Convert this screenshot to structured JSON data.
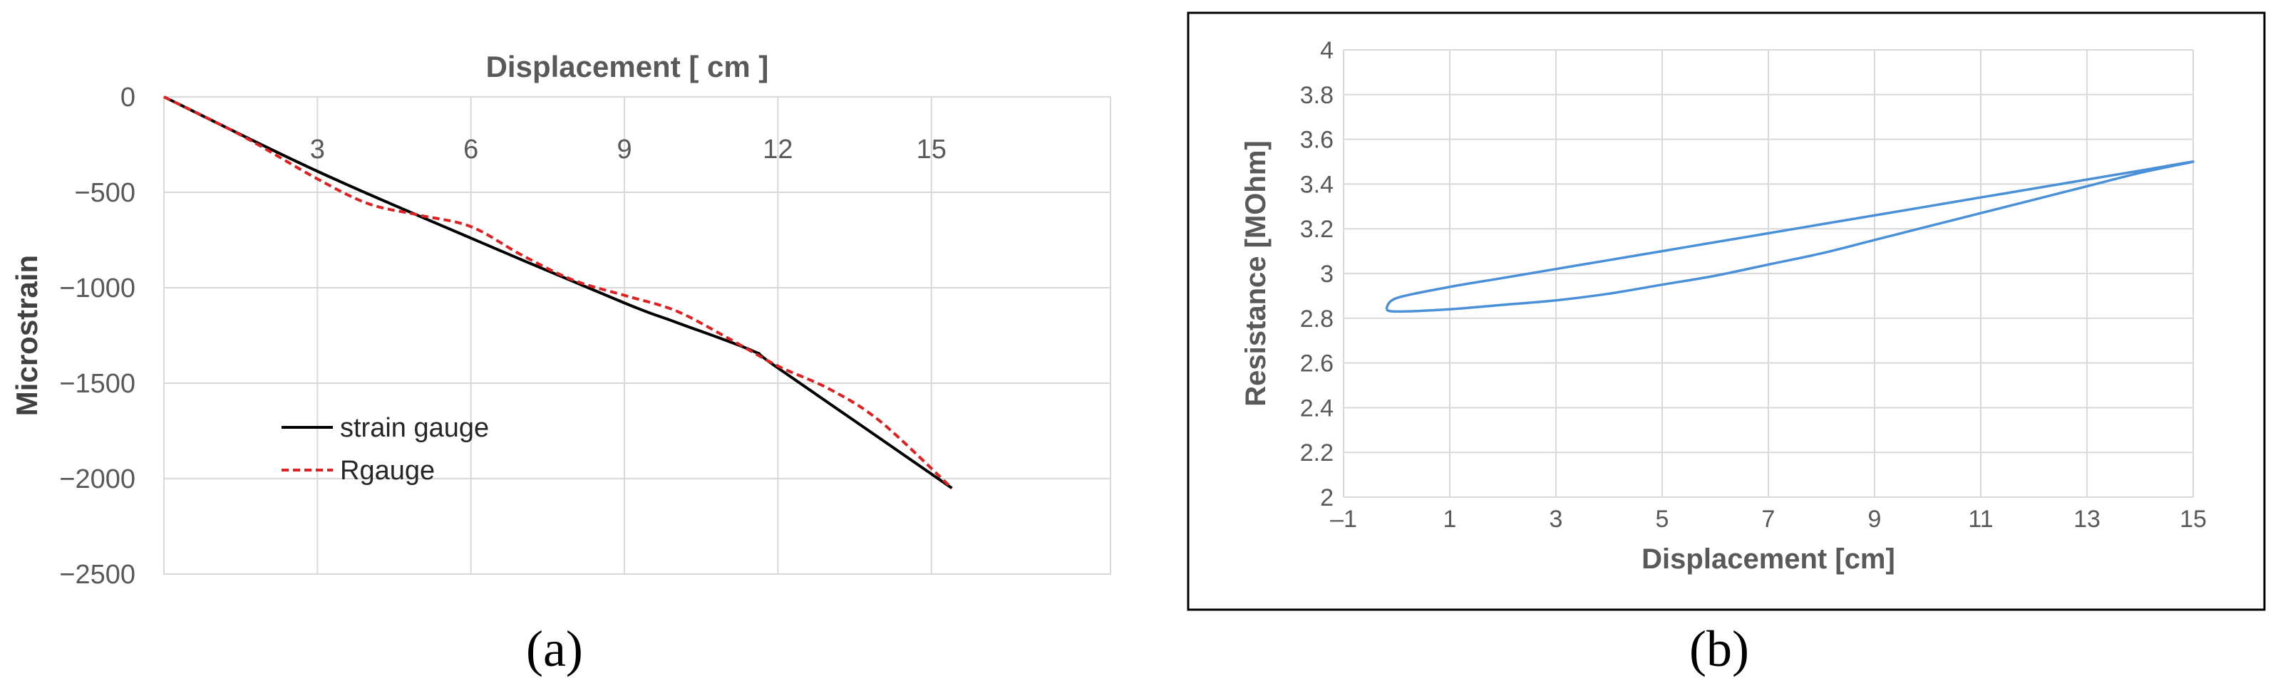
{
  "chart_data": [
    {
      "panel": "(a)",
      "type": "line",
      "xlabel": "Displacement [ cm ]",
      "ylabel": "Microstrain",
      "xlim": [
        0,
        18.5
      ],
      "ylim": [
        -2500,
        0
      ],
      "xticks": [
        3,
        6,
        9,
        12,
        15
      ],
      "yticks": [
        0,
        -500,
        -1000,
        -1500,
        -2000,
        -2500
      ],
      "xaxis_position": "top",
      "grid": true,
      "legend": "bottom-left",
      "series": [
        {
          "name": "strain gauge",
          "color": "#000000",
          "style": "solid",
          "x": [
            0,
            3,
            6,
            9,
            10,
            11.5,
            12,
            15.4
          ],
          "y": [
            0,
            -390,
            -740,
            -1080,
            -1180,
            -1330,
            -1420,
            -2050
          ]
        },
        {
          "name": "Rgauge",
          "color": "#e02020",
          "style": "dashed",
          "x": [
            0,
            1.5,
            3,
            4,
            5,
            6,
            7,
            8,
            9,
            10,
            11,
            12,
            13,
            14,
            15.4
          ],
          "y": [
            0,
            -200,
            -430,
            -560,
            -620,
            -680,
            -830,
            -960,
            -1040,
            -1120,
            -1260,
            -1410,
            -1530,
            -1700,
            -2050
          ]
        }
      ]
    },
    {
      "panel": "(b)",
      "type": "line",
      "xlabel": "Displacement [cm]",
      "ylabel": "Resistance [MOhm]",
      "xlim": [
        -1,
        15
      ],
      "ylim": [
        2,
        4
      ],
      "xticks": [
        "–1",
        "1",
        "3",
        "5",
        "7",
        "9",
        "11",
        "13",
        "15"
      ],
      "yticks": [
        "2",
        "2.2",
        "2.4",
        "2.6",
        "2.8",
        "3",
        "3.2",
        "3.4",
        "3.6",
        "3.8",
        "4"
      ],
      "grid": true,
      "series": [
        {
          "color": "#4a90d9",
          "x": [
            -0.2,
            0,
            1,
            2,
            3,
            4,
            5,
            6,
            7,
            8,
            9,
            10,
            11,
            12,
            13,
            14,
            15,
            14,
            13,
            12,
            11,
            10,
            9,
            8,
            7,
            6,
            5,
            4,
            3,
            2,
            1,
            0,
            -0.2
          ],
          "y": [
            2.84,
            2.83,
            2.84,
            2.86,
            2.88,
            2.91,
            2.95,
            2.99,
            3.04,
            3.09,
            3.15,
            3.21,
            3.27,
            3.33,
            3.39,
            3.45,
            3.5,
            3.46,
            3.42,
            3.38,
            3.34,
            3.3,
            3.26,
            3.22,
            3.18,
            3.14,
            3.1,
            3.06,
            3.02,
            2.98,
            2.94,
            2.89,
            2.84
          ]
        }
      ]
    }
  ],
  "captions": {
    "a": "(a)",
    "b": "(b)"
  }
}
